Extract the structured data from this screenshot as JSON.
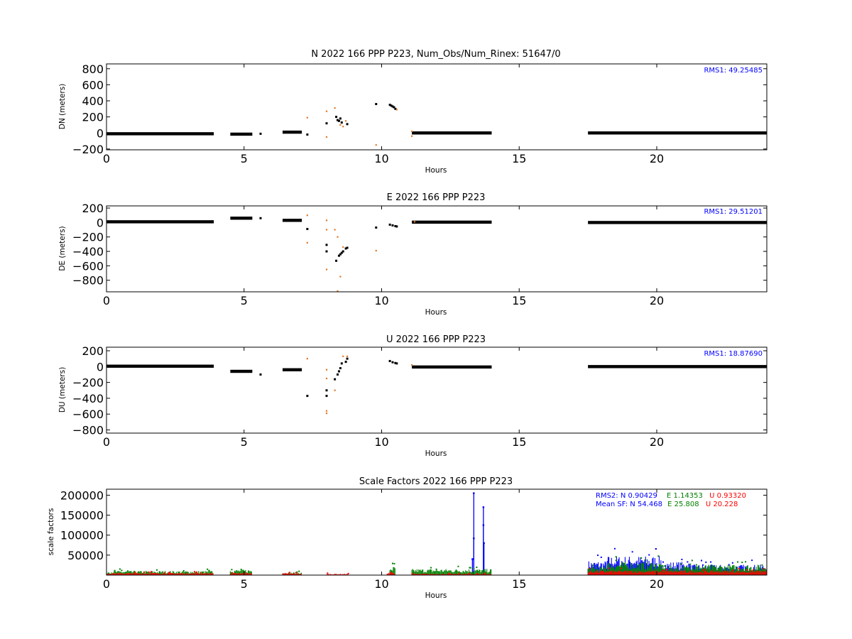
{
  "colors": {
    "black": "#000000",
    "orange": "#e07b2a",
    "blue": "#0000ff",
    "green": "#008000",
    "red": "#ff0000"
  },
  "chart_data": [
    {
      "type": "scatter",
      "title": "N 2022 166 PPP  P223, Num_Obs/Num_Rinex: 51647/0",
      "xlabel": "Hours",
      "ylabel": "DN (meters)",
      "xlim": [
        0,
        24
      ],
      "ylim": [
        -210,
        860
      ],
      "xticks": [
        "0",
        "5",
        "10",
        "15",
        "20"
      ],
      "yticks": [
        "−200",
        "0",
        "200",
        "400",
        "600",
        "800"
      ],
      "annotation": "RMS1: 49.25485",
      "annotation_color": "#0000ff",
      "segments": [
        {
          "x0": 0.0,
          "x1": 3.9,
          "y": -10
        },
        {
          "x0": 4.5,
          "x1": 5.3,
          "y": -15
        },
        {
          "x0": 6.4,
          "x1": 7.1,
          "y": 10
        },
        {
          "x0": 11.1,
          "x1": 14.0,
          "y": 0
        },
        {
          "x0": 17.5,
          "x1": 24.0,
          "y": 0
        }
      ],
      "scatter": [
        {
          "x": 5.6,
          "y": -10,
          "c": "k"
        },
        {
          "x": 7.3,
          "y": 190,
          "c": "o"
        },
        {
          "x": 7.3,
          "y": -20,
          "c": "k"
        },
        {
          "x": 8.0,
          "y": 270,
          "c": "o"
        },
        {
          "x": 8.0,
          "y": 120,
          "c": "k"
        },
        {
          "x": 8.0,
          "y": -50,
          "c": "o"
        },
        {
          "x": 8.3,
          "y": 310,
          "c": "o"
        },
        {
          "x": 8.35,
          "y": 200,
          "c": "k"
        },
        {
          "x": 8.4,
          "y": 160,
          "c": "k"
        },
        {
          "x": 8.45,
          "y": 150,
          "c": "k"
        },
        {
          "x": 8.5,
          "y": 180,
          "c": "k"
        },
        {
          "x": 8.5,
          "y": 100,
          "c": "o"
        },
        {
          "x": 8.55,
          "y": 130,
          "c": "k"
        },
        {
          "x": 8.6,
          "y": 80,
          "c": "o"
        },
        {
          "x": 8.7,
          "y": 150,
          "c": "o"
        },
        {
          "x": 8.75,
          "y": 110,
          "c": "k"
        },
        {
          "x": 9.8,
          "y": 360,
          "c": "k"
        },
        {
          "x": 9.8,
          "y": -150,
          "c": "o"
        },
        {
          "x": 10.3,
          "y": 350,
          "c": "k"
        },
        {
          "x": 10.35,
          "y": 340,
          "c": "k"
        },
        {
          "x": 10.4,
          "y": 330,
          "c": "k"
        },
        {
          "x": 10.45,
          "y": 320,
          "c": "k"
        },
        {
          "x": 10.5,
          "y": 300,
          "c": "k"
        },
        {
          "x": 10.55,
          "y": 290,
          "c": "o"
        },
        {
          "x": 11.1,
          "y": 20,
          "c": "o"
        },
        {
          "x": 11.1,
          "y": -40,
          "c": "o"
        }
      ]
    },
    {
      "type": "scatter",
      "title": "E 2022 166 PPP  P223",
      "xlabel": "Hours",
      "ylabel": "DE (meters)",
      "xlim": [
        0,
        24
      ],
      "ylim": [
        -960,
        230
      ],
      "xticks": [
        "0",
        "5",
        "10",
        "15",
        "20"
      ],
      "yticks": [
        "−800",
        "−600",
        "−400",
        "−200",
        "0",
        "200"
      ],
      "annotation": "RMS1: 29.51201",
      "annotation_color": "#0000ff",
      "segments": [
        {
          "x0": 0.0,
          "x1": 3.9,
          "y": 10
        },
        {
          "x0": 4.5,
          "x1": 5.3,
          "y": 60
        },
        {
          "x0": 6.4,
          "x1": 7.1,
          "y": 30
        },
        {
          "x0": 11.1,
          "x1": 14.0,
          "y": 5
        },
        {
          "x0": 17.5,
          "x1": 24.0,
          "y": 0
        }
      ],
      "scatter": [
        {
          "x": 5.6,
          "y": 60,
          "c": "k"
        },
        {
          "x": 7.3,
          "y": 100,
          "c": "o"
        },
        {
          "x": 7.3,
          "y": -90,
          "c": "k"
        },
        {
          "x": 7.3,
          "y": -280,
          "c": "o"
        },
        {
          "x": 8.0,
          "y": 30,
          "c": "o"
        },
        {
          "x": 8.0,
          "y": -100,
          "c": "o"
        },
        {
          "x": 8.0,
          "y": -310,
          "c": "k"
        },
        {
          "x": 8.0,
          "y": -400,
          "c": "k"
        },
        {
          "x": 8.0,
          "y": -650,
          "c": "o"
        },
        {
          "x": 8.3,
          "y": -100,
          "c": "o"
        },
        {
          "x": 8.4,
          "y": -200,
          "c": "o"
        },
        {
          "x": 8.35,
          "y": -530,
          "c": "k"
        },
        {
          "x": 8.4,
          "y": -950,
          "c": "o"
        },
        {
          "x": 8.45,
          "y": -460,
          "c": "k"
        },
        {
          "x": 8.5,
          "y": -440,
          "c": "k"
        },
        {
          "x": 8.55,
          "y": -420,
          "c": "k"
        },
        {
          "x": 8.5,
          "y": -750,
          "c": "o"
        },
        {
          "x": 8.6,
          "y": -400,
          "c": "k"
        },
        {
          "x": 8.6,
          "y": -340,
          "c": "o"
        },
        {
          "x": 8.7,
          "y": -360,
          "c": "k"
        },
        {
          "x": 8.75,
          "y": -350,
          "c": "k"
        },
        {
          "x": 9.8,
          "y": -70,
          "c": "k"
        },
        {
          "x": 9.8,
          "y": -390,
          "c": "o"
        },
        {
          "x": 10.3,
          "y": -30,
          "c": "k"
        },
        {
          "x": 10.4,
          "y": -40,
          "c": "k"
        },
        {
          "x": 10.5,
          "y": -50,
          "c": "k"
        },
        {
          "x": 10.55,
          "y": -55,
          "c": "k"
        },
        {
          "x": 11.2,
          "y": 10,
          "c": "o"
        }
      ]
    },
    {
      "type": "scatter",
      "title": "U 2022 166 PPP  P223",
      "xlabel": "Hours",
      "ylabel": "DU (meters)",
      "xlim": [
        0,
        24
      ],
      "ylim": [
        -840,
        245
      ],
      "xticks": [
        "0",
        "5",
        "10",
        "15",
        "20"
      ],
      "yticks": [
        "−800",
        "−600",
        "−400",
        "−200",
        "0",
        "200"
      ],
      "annotation": "RMS1: 18.87690",
      "annotation_color": "#0000ff",
      "segments": [
        {
          "x0": 0.0,
          "x1": 3.9,
          "y": 5
        },
        {
          "x0": 4.5,
          "x1": 5.3,
          "y": -60
        },
        {
          "x0": 6.4,
          "x1": 7.1,
          "y": -40
        },
        {
          "x0": 11.1,
          "x1": 14.0,
          "y": -5
        },
        {
          "x0": 17.5,
          "x1": 24.0,
          "y": 0
        }
      ],
      "scatter": [
        {
          "x": 5.6,
          "y": -100,
          "c": "k"
        },
        {
          "x": 7.3,
          "y": 100,
          "c": "o"
        },
        {
          "x": 7.3,
          "y": -370,
          "c": "k"
        },
        {
          "x": 8.0,
          "y": -40,
          "c": "o"
        },
        {
          "x": 8.0,
          "y": -150,
          "c": "o"
        },
        {
          "x": 8.0,
          "y": -300,
          "c": "k"
        },
        {
          "x": 8.0,
          "y": -370,
          "c": "k"
        },
        {
          "x": 8.0,
          "y": -560,
          "c": "o"
        },
        {
          "x": 8.0,
          "y": -590,
          "c": "o"
        },
        {
          "x": 8.3,
          "y": -160,
          "c": "k"
        },
        {
          "x": 8.3,
          "y": -300,
          "c": "o"
        },
        {
          "x": 8.4,
          "y": -100,
          "c": "k"
        },
        {
          "x": 8.45,
          "y": -60,
          "c": "k"
        },
        {
          "x": 8.5,
          "y": -20,
          "c": "k"
        },
        {
          "x": 8.55,
          "y": 40,
          "c": "k"
        },
        {
          "x": 8.6,
          "y": 130,
          "c": "o"
        },
        {
          "x": 8.7,
          "y": 60,
          "c": "k"
        },
        {
          "x": 8.75,
          "y": 100,
          "c": "k"
        },
        {
          "x": 8.75,
          "y": 130,
          "c": "o"
        },
        {
          "x": 10.3,
          "y": 70,
          "c": "k"
        },
        {
          "x": 10.4,
          "y": 55,
          "c": "k"
        },
        {
          "x": 10.5,
          "y": 45,
          "c": "k"
        },
        {
          "x": 10.55,
          "y": 40,
          "c": "k"
        },
        {
          "x": 11.1,
          "y": 20,
          "c": "o"
        }
      ]
    },
    {
      "type": "bar",
      "title": "Scale Factors 2022 166 PPP  P223",
      "xlabel": "Hours",
      "ylabel": "scale factors",
      "xlim": [
        0,
        24
      ],
      "ylim": [
        0,
        215000
      ],
      "xticks": [
        "0",
        "5",
        "10",
        "15",
        "20"
      ],
      "yticks": [
        "50000",
        "100000",
        "150000",
        "200000"
      ],
      "annotations": [
        {
          "prefix": "RMS2: N  0.90429",
          "e": "E  1.14353",
          "u": "U  0.93320"
        },
        {
          "prefix": "Mean SF: N  54.468",
          "e": "E  25.808",
          "u": "U  20.228"
        }
      ],
      "series": [
        {
          "color": "#0000ff",
          "spikes": [
            {
              "x": 13.35,
              "y": 205000
            },
            {
              "x": 13.35,
              "y": 92000
            },
            {
              "x": 13.7,
              "y": 170000
            },
            {
              "x": 13.7,
              "y": 125000
            },
            {
              "x": 13.72,
              "y": 80000
            },
            {
              "x": 13.3,
              "y": 40000
            }
          ],
          "bands": [
            {
              "x0": 17.5,
              "x1": 18.2,
              "y": 30000
            },
            {
              "x0": 18.2,
              "x1": 20.2,
              "y": 40000
            },
            {
              "x0": 20.2,
              "x1": 21.2,
              "y": 28000
            },
            {
              "x0": 21.2,
              "x1": 24.0,
              "y": 22000
            }
          ]
        },
        {
          "color": "#008000",
          "bands": [
            {
              "x0": 0.0,
              "x1": 3.9,
              "y": 9000
            },
            {
              "x0": 4.5,
              "x1": 5.3,
              "y": 12000
            },
            {
              "x0": 6.4,
              "x1": 7.1,
              "y": 6000
            },
            {
              "x0": 10.3,
              "x1": 10.5,
              "y": 18000
            },
            {
              "x0": 11.1,
              "x1": 14.0,
              "y": 13000
            },
            {
              "x0": 17.5,
              "x1": 18.2,
              "y": 18000
            },
            {
              "x0": 18.2,
              "x1": 20.2,
              "y": 28000
            },
            {
              "x0": 20.2,
              "x1": 21.2,
              "y": 20000
            },
            {
              "x0": 21.2,
              "x1": 24.0,
              "y": 22000
            }
          ]
        },
        {
          "color": "#ff0000",
          "bands": [
            {
              "x0": 0.0,
              "x1": 3.9,
              "y": 5000
            },
            {
              "x0": 4.5,
              "x1": 5.3,
              "y": 5000
            },
            {
              "x0": 6.4,
              "x1": 7.1,
              "y": 4000
            },
            {
              "x0": 8.0,
              "x1": 8.8,
              "y": 3000
            },
            {
              "x0": 10.2,
              "x1": 10.5,
              "y": 5000
            },
            {
              "x0": 11.1,
              "x1": 14.0,
              "y": 3000
            },
            {
              "x0": 17.5,
              "x1": 24.0,
              "y": 10000
            }
          ]
        }
      ]
    }
  ]
}
